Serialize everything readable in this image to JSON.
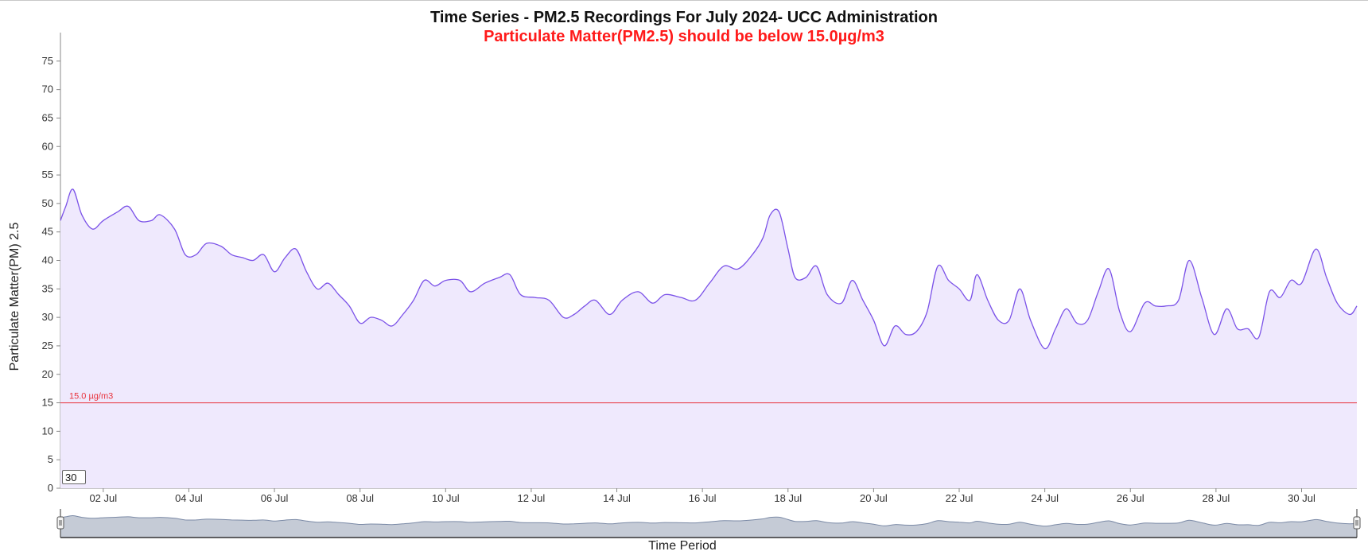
{
  "chart_data": {
    "type": "area",
    "title": "Time Series - PM2.5 Recordings For July 2024- UCC Administration",
    "subtitle": "Particulate Matter(PM2.5) should be below 15.0µg/m3",
    "xlabel": "Time Period",
    "ylabel": "Particulate Matter(PM) 2.5",
    "ylim": [
      0,
      80
    ],
    "yticks": [
      0,
      5,
      10,
      15,
      20,
      25,
      30,
      35,
      40,
      45,
      50,
      55,
      60,
      65,
      70,
      75
    ],
    "xlim": [
      "2024-07-01",
      "2024-07-31T07:00"
    ],
    "xticks": [
      {
        "date": "2024-07-02",
        "label": "02 Jul"
      },
      {
        "date": "2024-07-04",
        "label": "04 Jul"
      },
      {
        "date": "2024-07-06",
        "label": "06 Jul"
      },
      {
        "date": "2024-07-08",
        "label": "08 Jul"
      },
      {
        "date": "2024-07-10",
        "label": "10 Jul"
      },
      {
        "date": "2024-07-12",
        "label": "12 Jul"
      },
      {
        "date": "2024-07-14",
        "label": "14 Jul"
      },
      {
        "date": "2024-07-16",
        "label": "16 Jul"
      },
      {
        "date": "2024-07-18",
        "label": "18 Jul"
      },
      {
        "date": "2024-07-20",
        "label": "20 Jul"
      },
      {
        "date": "2024-07-22",
        "label": "22 Jul"
      },
      {
        "date": "2024-07-24",
        "label": "24 Jul"
      },
      {
        "date": "2024-07-26",
        "label": "26 Jul"
      },
      {
        "date": "2024-07-28",
        "label": "28 Jul"
      },
      {
        "date": "2024-07-30",
        "label": "30 Jul"
      }
    ],
    "threshold": {
      "value": 15,
      "label": "15.0 µg/m3",
      "color": "#e8323c"
    },
    "series": [
      {
        "color": "#7b52e8",
        "fill": "#efe9fd",
        "points": [
          [
            "2024-07-01T00:00",
            47
          ],
          [
            "2024-07-01T03:00",
            49.5
          ],
          [
            "2024-07-01T07:00",
            52.5
          ],
          [
            "2024-07-01T12:00",
            48
          ],
          [
            "2024-07-01T18:00",
            45.5
          ],
          [
            "2024-07-02T00:00",
            47
          ],
          [
            "2024-07-02T08:00",
            48.5
          ],
          [
            "2024-07-02T14:00",
            49.5
          ],
          [
            "2024-07-02T20:00",
            47
          ],
          [
            "2024-07-03T03:00",
            47
          ],
          [
            "2024-07-03T08:00",
            48
          ],
          [
            "2024-07-03T16:00",
            45.5
          ],
          [
            "2024-07-03T22:00",
            41
          ],
          [
            "2024-07-04T04:00",
            41
          ],
          [
            "2024-07-04T10:00",
            43
          ],
          [
            "2024-07-04T18:00",
            42.5
          ],
          [
            "2024-07-05T00:00",
            41
          ],
          [
            "2024-07-05T06:00",
            40.5
          ],
          [
            "2024-07-05T12:00",
            40
          ],
          [
            "2024-07-05T18:00",
            41
          ],
          [
            "2024-07-06T00:00",
            38
          ],
          [
            "2024-07-06T06:00",
            40.5
          ],
          [
            "2024-07-06T12:00",
            42
          ],
          [
            "2024-07-06T18:00",
            38
          ],
          [
            "2024-07-07T00:00",
            35
          ],
          [
            "2024-07-07T06:00",
            36
          ],
          [
            "2024-07-07T12:00",
            34
          ],
          [
            "2024-07-07T18:00",
            32
          ],
          [
            "2024-07-08T00:00",
            29
          ],
          [
            "2024-07-08T06:00",
            30
          ],
          [
            "2024-07-08T12:00",
            29.5
          ],
          [
            "2024-07-08T18:00",
            28.5
          ],
          [
            "2024-07-09T00:00",
            30.5
          ],
          [
            "2024-07-09T06:00",
            33
          ],
          [
            "2024-07-09T12:00",
            36.5
          ],
          [
            "2024-07-09T18:00",
            35.5
          ],
          [
            "2024-07-10T00:00",
            36.5
          ],
          [
            "2024-07-10T08:00",
            36.5
          ],
          [
            "2024-07-10T14:00",
            34.5
          ],
          [
            "2024-07-10T22:00",
            36
          ],
          [
            "2024-07-11T06:00",
            37
          ],
          [
            "2024-07-11T12:00",
            37.5
          ],
          [
            "2024-07-11T18:00",
            34
          ],
          [
            "2024-07-12T02:00",
            33.5
          ],
          [
            "2024-07-12T10:00",
            33
          ],
          [
            "2024-07-12T18:00",
            30
          ],
          [
            "2024-07-13T00:00",
            30.5
          ],
          [
            "2024-07-13T06:00",
            32
          ],
          [
            "2024-07-13T12:00",
            33
          ],
          [
            "2024-07-13T20:00",
            30.5
          ],
          [
            "2024-07-14T03:00",
            33
          ],
          [
            "2024-07-14T12:00",
            34.5
          ],
          [
            "2024-07-14T20:00",
            32.5
          ],
          [
            "2024-07-15T03:00",
            34
          ],
          [
            "2024-07-15T12:00",
            33.5
          ],
          [
            "2024-07-15T20:00",
            33
          ],
          [
            "2024-07-16T04:00",
            36
          ],
          [
            "2024-07-16T12:00",
            39
          ],
          [
            "2024-07-16T20:00",
            38.5
          ],
          [
            "2024-07-17T04:00",
            41
          ],
          [
            "2024-07-17T10:00",
            44
          ],
          [
            "2024-07-17T14:00",
            48
          ],
          [
            "2024-07-17T19:00",
            48.5
          ],
          [
            "2024-07-18T00:00",
            42
          ],
          [
            "2024-07-18T04:00",
            37
          ],
          [
            "2024-07-18T10:00",
            37
          ],
          [
            "2024-07-18T16:00",
            39
          ],
          [
            "2024-07-18T22:00",
            34
          ],
          [
            "2024-07-19T06:00",
            32.5
          ],
          [
            "2024-07-19T12:00",
            36.5
          ],
          [
            "2024-07-19T18:00",
            33
          ],
          [
            "2024-07-20T00:00",
            29.5
          ],
          [
            "2024-07-20T06:00",
            25
          ],
          [
            "2024-07-20T12:00",
            28.5
          ],
          [
            "2024-07-20T18:00",
            27
          ],
          [
            "2024-07-21T00:00",
            27.5
          ],
          [
            "2024-07-21T06:00",
            31
          ],
          [
            "2024-07-21T12:00",
            39
          ],
          [
            "2024-07-21T18:00",
            36.5
          ],
          [
            "2024-07-22T00:00",
            35
          ],
          [
            "2024-07-22T06:00",
            33
          ],
          [
            "2024-07-22T10:00",
            37.5
          ],
          [
            "2024-07-22T16:00",
            33
          ],
          [
            "2024-07-22T22:00",
            29.5
          ],
          [
            "2024-07-23T04:00",
            29.5
          ],
          [
            "2024-07-23T10:00",
            35
          ],
          [
            "2024-07-23T16:00",
            29.5
          ],
          [
            "2024-07-24T00:00",
            24.5
          ],
          [
            "2024-07-24T06:00",
            28
          ],
          [
            "2024-07-24T12:00",
            31.5
          ],
          [
            "2024-07-24T18:00",
            29
          ],
          [
            "2024-07-25T00:00",
            29.5
          ],
          [
            "2024-07-25T06:00",
            34.5
          ],
          [
            "2024-07-25T12:00",
            38.5
          ],
          [
            "2024-07-25T18:00",
            31
          ],
          [
            "2024-07-26T00:00",
            27.5
          ],
          [
            "2024-07-26T08:00",
            32.5
          ],
          [
            "2024-07-26T14:00",
            32
          ],
          [
            "2024-07-26T20:00",
            32
          ],
          [
            "2024-07-27T03:00",
            33
          ],
          [
            "2024-07-27T09:00",
            40
          ],
          [
            "2024-07-27T16:00",
            33.5
          ],
          [
            "2024-07-27T23:00",
            27
          ],
          [
            "2024-07-28T06:00",
            31.5
          ],
          [
            "2024-07-28T12:00",
            28
          ],
          [
            "2024-07-28T18:00",
            28
          ],
          [
            "2024-07-29T00:00",
            26.5
          ],
          [
            "2024-07-29T06:00",
            34.5
          ],
          [
            "2024-07-29T12:00",
            33.5
          ],
          [
            "2024-07-29T18:00",
            36.5
          ],
          [
            "2024-07-30T00:00",
            36
          ],
          [
            "2024-07-30T08:00",
            42
          ],
          [
            "2024-07-30T14:00",
            37
          ],
          [
            "2024-07-30T20:00",
            32.5
          ],
          [
            "2024-07-31T03:00",
            30.5
          ],
          [
            "2024-07-31T07:00",
            32
          ]
        ]
      }
    ],
    "navigator": {
      "fill": "#c5cbd6",
      "line": "#7b8aa6"
    },
    "controls": {
      "window_value": "30"
    }
  }
}
